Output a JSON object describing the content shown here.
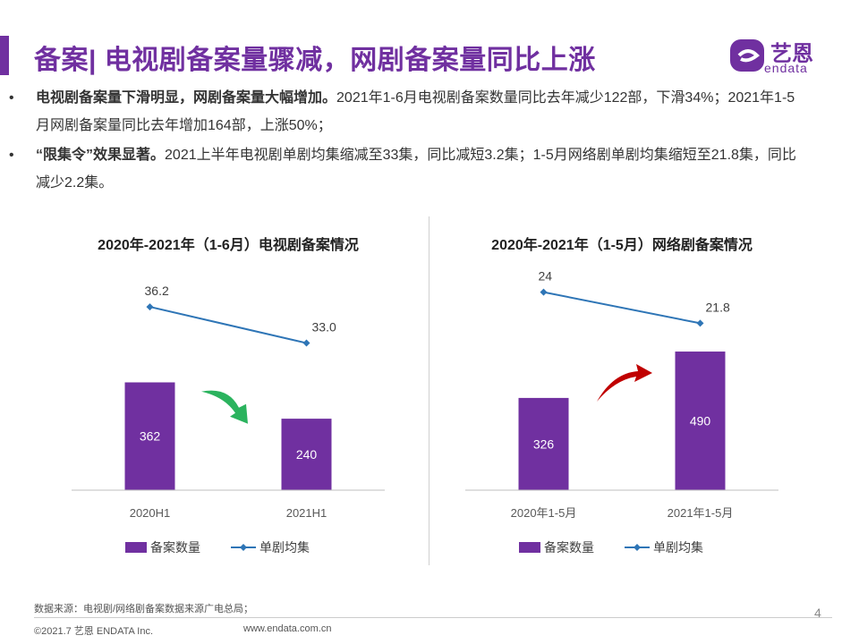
{
  "header": {
    "title": "备案| 电视剧备案量骤减，网剧备案量同比上涨",
    "logo_cn": "艺恩",
    "logo_en": "endata",
    "accent_color": "#7030a0"
  },
  "bullets": [
    {
      "marker": "•",
      "bold": "电视剧备案量下滑明显，网剧备案量大幅增加。",
      "text": "2021年1-6月电视剧备案数量同比去年减少122部，下滑34%；2021年1-5月网剧备案量同比去年增加164部，上涨50%；"
    },
    {
      "marker": "•",
      "bold": "“限集令”效果显著。",
      "text": "2021上半年电视剧单剧均集缩减至33集，同比减短3.2集；1-5月网络剧单剧均集缩短至21.8集，同比减少2.2集。"
    }
  ],
  "chart_data": [
    {
      "type": "bar",
      "title": "2020年-2021年（1-6月）电视剧备案情况",
      "categories": [
        "2020H1",
        "2021H1"
      ],
      "series": [
        {
          "name": "备案数量",
          "kind": "bar",
          "values": [
            362,
            240
          ],
          "labels": [
            "362",
            "240"
          ],
          "color": "#7030a0"
        },
        {
          "name": "单剧均集",
          "kind": "line",
          "values": [
            36.2,
            33.0
          ],
          "labels": [
            "36.2",
            "33.0"
          ],
          "color": "#2e75b6"
        }
      ],
      "bar_ylim": [
        0,
        760
      ],
      "line_ylim": [
        20,
        40
      ],
      "trend_arrow": "down",
      "trend_arrow_color": "#2bb35e",
      "legend": "bottom"
    },
    {
      "type": "bar",
      "title": "2020年-2021年（1-5月）网络剧备案情况",
      "categories": [
        "2020年1-5月",
        "2021年1-5月"
      ],
      "series": [
        {
          "name": "备案数量",
          "kind": "bar",
          "values": [
            326,
            490
          ],
          "labels": [
            "326",
            "490"
          ],
          "color": "#7030a0"
        },
        {
          "name": "单剧均集",
          "kind": "line",
          "values": [
            24,
            21.8
          ],
          "labels": [
            "24",
            "21.8"
          ],
          "color": "#2e75b6"
        }
      ],
      "bar_ylim": [
        0,
        800
      ],
      "line_ylim": [
        10,
        26
      ],
      "trend_arrow": "up",
      "trend_arrow_color": "#c00000",
      "legend": "bottom"
    }
  ],
  "footer": {
    "source_note": "数据来源：电视剧/网络剧备案数据来源广电总局；",
    "copyright": "©2021.7 艺恩 ENDATA Inc.",
    "website": "www.endata.com.cn",
    "page_number": "4"
  }
}
